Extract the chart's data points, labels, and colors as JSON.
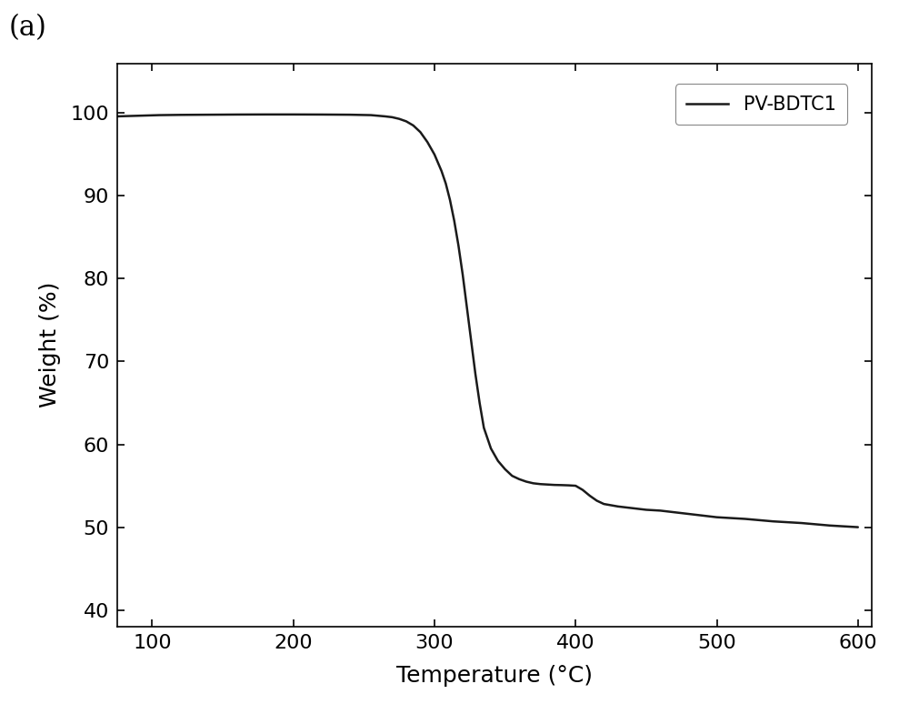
{
  "title_label": "(a)",
  "xlabel": "Temperature (°C)",
  "ylabel": "Weight (%)",
  "xlim": [
    75,
    610
  ],
  "ylim": [
    38,
    106
  ],
  "xticks": [
    100,
    200,
    300,
    400,
    500,
    600
  ],
  "yticks": [
    40,
    50,
    60,
    70,
    80,
    90,
    100
  ],
  "legend_label": "PV-BDTC1",
  "line_color": "#1a1a1a",
  "line_width": 1.8,
  "background_color": "#ffffff",
  "curve_x": [
    75,
    85,
    95,
    105,
    120,
    140,
    160,
    180,
    200,
    220,
    240,
    255,
    265,
    270,
    275,
    280,
    285,
    290,
    295,
    300,
    305,
    308,
    311,
    314,
    317,
    320,
    323,
    326,
    329,
    332,
    335,
    340,
    345,
    350,
    355,
    360,
    365,
    370,
    375,
    380,
    385,
    390,
    395,
    400,
    405,
    410,
    415,
    420,
    430,
    440,
    450,
    460,
    470,
    480,
    490,
    500,
    520,
    540,
    560,
    580,
    600
  ],
  "curve_y": [
    99.6,
    99.65,
    99.7,
    99.75,
    99.78,
    99.8,
    99.82,
    99.83,
    99.83,
    99.82,
    99.8,
    99.75,
    99.6,
    99.5,
    99.3,
    99.0,
    98.5,
    97.7,
    96.5,
    95.0,
    93.0,
    91.5,
    89.5,
    87.0,
    84.0,
    80.5,
    76.5,
    72.5,
    68.5,
    65.0,
    62.0,
    59.5,
    58.0,
    57.0,
    56.2,
    55.8,
    55.5,
    55.3,
    55.2,
    55.15,
    55.1,
    55.08,
    55.05,
    55.0,
    54.5,
    53.8,
    53.2,
    52.8,
    52.5,
    52.3,
    52.1,
    52.0,
    51.8,
    51.6,
    51.4,
    51.2,
    51.0,
    50.7,
    50.5,
    50.2,
    50.0
  ]
}
